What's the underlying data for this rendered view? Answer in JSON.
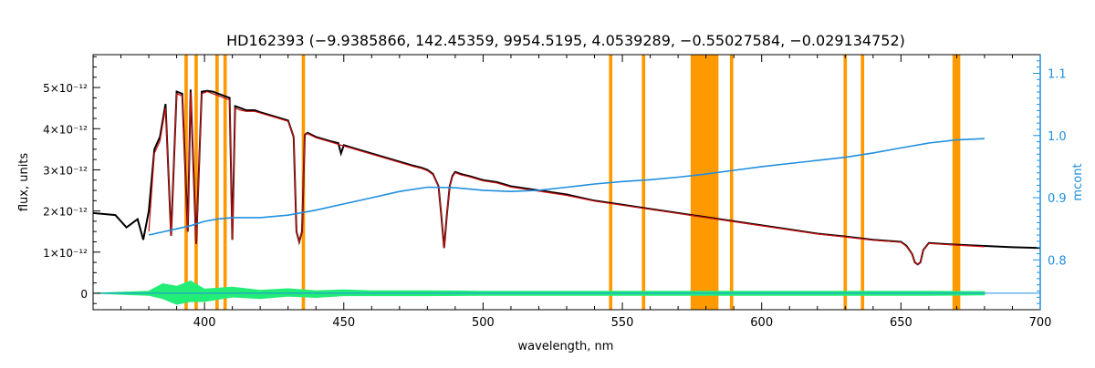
{
  "chart_data": {
    "type": "line",
    "title": "HD162393   (−9.9385866, 142.45359, 9954.5195, 4.0539289, −0.55027584, −0.029134752)",
    "xlabel": "wavelength, nm",
    "ylabel": "flux, units",
    "y2label": "mcont",
    "xlim": [
      360,
      700
    ],
    "ylim": [
      -0.4,
      5.8
    ],
    "y2lim": [
      0.72,
      1.13
    ],
    "x_ticks": [
      {
        "value": 400,
        "label": "400"
      },
      {
        "value": 450,
        "label": "450"
      },
      {
        "value": 500,
        "label": "500"
      },
      {
        "value": 550,
        "label": "550"
      },
      {
        "value": 600,
        "label": "600"
      },
      {
        "value": 650,
        "label": "650"
      },
      {
        "value": 700,
        "label": "700"
      }
    ],
    "y_ticks": [
      {
        "value": 0,
        "label": "0"
      },
      {
        "value": 1,
        "label": "1×10⁻¹²"
      },
      {
        "value": 2,
        "label": "2×10⁻¹²"
      },
      {
        "value": 3,
        "label": "3×10⁻¹²"
      },
      {
        "value": 4,
        "label": "4×10⁻¹²"
      },
      {
        "value": 5,
        "label": "5×10⁻¹²"
      }
    ],
    "y2_ticks": [
      {
        "value": 0.8,
        "label": "0.8"
      },
      {
        "value": 0.9,
        "label": "0.9"
      },
      {
        "value": 1.0,
        "label": "1.0"
      },
      {
        "value": 1.1,
        "label": "1.1"
      }
    ],
    "y_unit_scale": "1e-12",
    "masked_regions": [
      [
        392.8,
        394.0
      ],
      [
        396.4,
        397.6
      ],
      [
        403.9,
        405.1
      ],
      [
        406.8,
        408.0
      ],
      [
        434.9,
        436.1
      ],
      [
        545.2,
        546.4
      ],
      [
        557.0,
        558.2
      ],
      [
        574.5,
        584.5
      ],
      [
        588.6,
        589.8
      ],
      [
        629.4,
        630.6
      ],
      [
        635.6,
        636.8
      ],
      [
        668.5,
        671.3
      ]
    ],
    "series": [
      {
        "role": "observed",
        "color": "#000000",
        "x": [
          360,
          368,
          372,
          376,
          378,
          380,
          382,
          384,
          386,
          388,
          390,
          392,
          394,
          395,
          397,
          399,
          401,
          403,
          405,
          407,
          409,
          410,
          411,
          413,
          415,
          418,
          420,
          425,
          430,
          432,
          433,
          434,
          435,
          436,
          437,
          440,
          445,
          448,
          449,
          450,
          455,
          460,
          465,
          470,
          475,
          478,
          480,
          482,
          484,
          485,
          486,
          487,
          488,
          489,
          490,
          492,
          495,
          500,
          505,
          510,
          515,
          520,
          530,
          540,
          550,
          560,
          570,
          580,
          590,
          600,
          610,
          620,
          630,
          640,
          650,
          652,
          654,
          655,
          656,
          657,
          658,
          660,
          665,
          670,
          680,
          690,
          700
        ],
        "y": [
          1.95,
          1.9,
          1.6,
          1.8,
          1.3,
          2.0,
          3.5,
          3.8,
          4.6,
          1.4,
          4.9,
          4.85,
          1.5,
          4.95,
          1.2,
          4.9,
          4.92,
          4.9,
          4.85,
          4.8,
          4.75,
          1.3,
          4.55,
          4.5,
          4.45,
          4.45,
          4.4,
          4.3,
          4.2,
          3.8,
          1.5,
          1.25,
          1.5,
          3.85,
          3.9,
          3.8,
          3.7,
          3.65,
          3.4,
          3.6,
          3.5,
          3.4,
          3.3,
          3.2,
          3.1,
          3.05,
          3.0,
          2.9,
          2.6,
          1.9,
          1.1,
          1.9,
          2.6,
          2.85,
          2.95,
          2.9,
          2.85,
          2.75,
          2.7,
          2.6,
          2.55,
          2.5,
          2.4,
          2.25,
          2.15,
          2.05,
          1.95,
          1.85,
          1.75,
          1.65,
          1.55,
          1.45,
          1.38,
          1.3,
          1.25,
          1.15,
          0.95,
          0.75,
          0.7,
          0.75,
          1.05,
          1.22,
          1.2,
          1.18,
          1.15,
          1.12,
          1.1
        ]
      },
      {
        "role": "model",
        "color": "#cc1111",
        "x": [
          380,
          382,
          384,
          386,
          388,
          390,
          392,
          394,
          395,
          397,
          399,
          401,
          403,
          405,
          407,
          409,
          410,
          411,
          413,
          415,
          418,
          420,
          425,
          430,
          432,
          433,
          434,
          435,
          436,
          437,
          440,
          445,
          450,
          455,
          460,
          465,
          470,
          475,
          478,
          480,
          482,
          484,
          485,
          486,
          487,
          488,
          489,
          490,
          492,
          495,
          500,
          505,
          510,
          515,
          520,
          530,
          540,
          550,
          560,
          570,
          580,
          590,
          600,
          610,
          620,
          630,
          640,
          650,
          652,
          654,
          655,
          656,
          657,
          658,
          660,
          665,
          670,
          680
        ],
        "y": [
          1.5,
          3.4,
          3.7,
          4.5,
          1.4,
          4.85,
          4.8,
          1.5,
          4.9,
          1.2,
          4.85,
          4.9,
          4.85,
          4.8,
          4.75,
          4.7,
          1.3,
          4.5,
          4.45,
          4.42,
          4.42,
          4.38,
          4.28,
          4.18,
          3.8,
          1.5,
          1.25,
          1.5,
          3.85,
          3.88,
          3.78,
          3.68,
          3.58,
          3.48,
          3.38,
          3.28,
          3.18,
          3.08,
          3.03,
          2.98,
          2.88,
          2.6,
          1.9,
          1.1,
          1.9,
          2.6,
          2.83,
          2.93,
          2.88,
          2.83,
          2.73,
          2.68,
          2.58,
          2.53,
          2.48,
          2.38,
          2.24,
          2.14,
          2.04,
          1.94,
          1.84,
          1.74,
          1.64,
          1.54,
          1.44,
          1.37,
          1.29,
          1.24,
          1.14,
          0.95,
          0.75,
          0.7,
          0.75,
          1.05,
          1.21,
          1.19,
          1.17,
          1.13
        ]
      },
      {
        "role": "residual",
        "color": "#22ee77",
        "x": [
          360,
          380,
          385,
          390,
          395,
          400,
          410,
          420,
          430,
          440,
          450,
          460,
          480,
          500,
          520,
          540,
          560,
          580,
          600,
          620,
          640,
          660,
          680
        ],
        "y": [
          0,
          0,
          0.05,
          -0.05,
          0.05,
          -0.05,
          0.03,
          -0.03,
          0.02,
          -0.02,
          0.01,
          0,
          0,
          0,
          0,
          0,
          0,
          0,
          0,
          0,
          0,
          0,
          0
        ],
        "amplitude": [
          0,
          0.05,
          0.18,
          0.22,
          0.25,
          0.15,
          0.12,
          0.1,
          0.09,
          0.08,
          0.07,
          0.06,
          0.06,
          0.05,
          0.05,
          0.05,
          0.05,
          0.05,
          0.05,
          0.05,
          0.05,
          0.05,
          0.04
        ]
      },
      {
        "role": "mcont",
        "axis": "right",
        "color": "#1f8fe0",
        "x": [
          380,
          385,
          390,
          395,
          400,
          405,
          410,
          420,
          430,
          440,
          450,
          460,
          470,
          480,
          490,
          500,
          510,
          520,
          530,
          540,
          550,
          560,
          570,
          580,
          590,
          600,
          610,
          620,
          630,
          640,
          650,
          660,
          670,
          680
        ],
        "y": [
          0.84,
          0.845,
          0.85,
          0.855,
          0.862,
          0.866,
          0.868,
          0.868,
          0.872,
          0.88,
          0.89,
          0.9,
          0.91,
          0.917,
          0.916,
          0.912,
          0.91,
          0.912,
          0.917,
          0.922,
          0.926,
          0.929,
          0.933,
          0.938,
          0.944,
          0.95,
          0.955,
          0.96,
          0.965,
          0.972,
          0.98,
          0.988,
          0.993,
          0.995
        ]
      }
    ],
    "grid": false,
    "legend": "none"
  }
}
